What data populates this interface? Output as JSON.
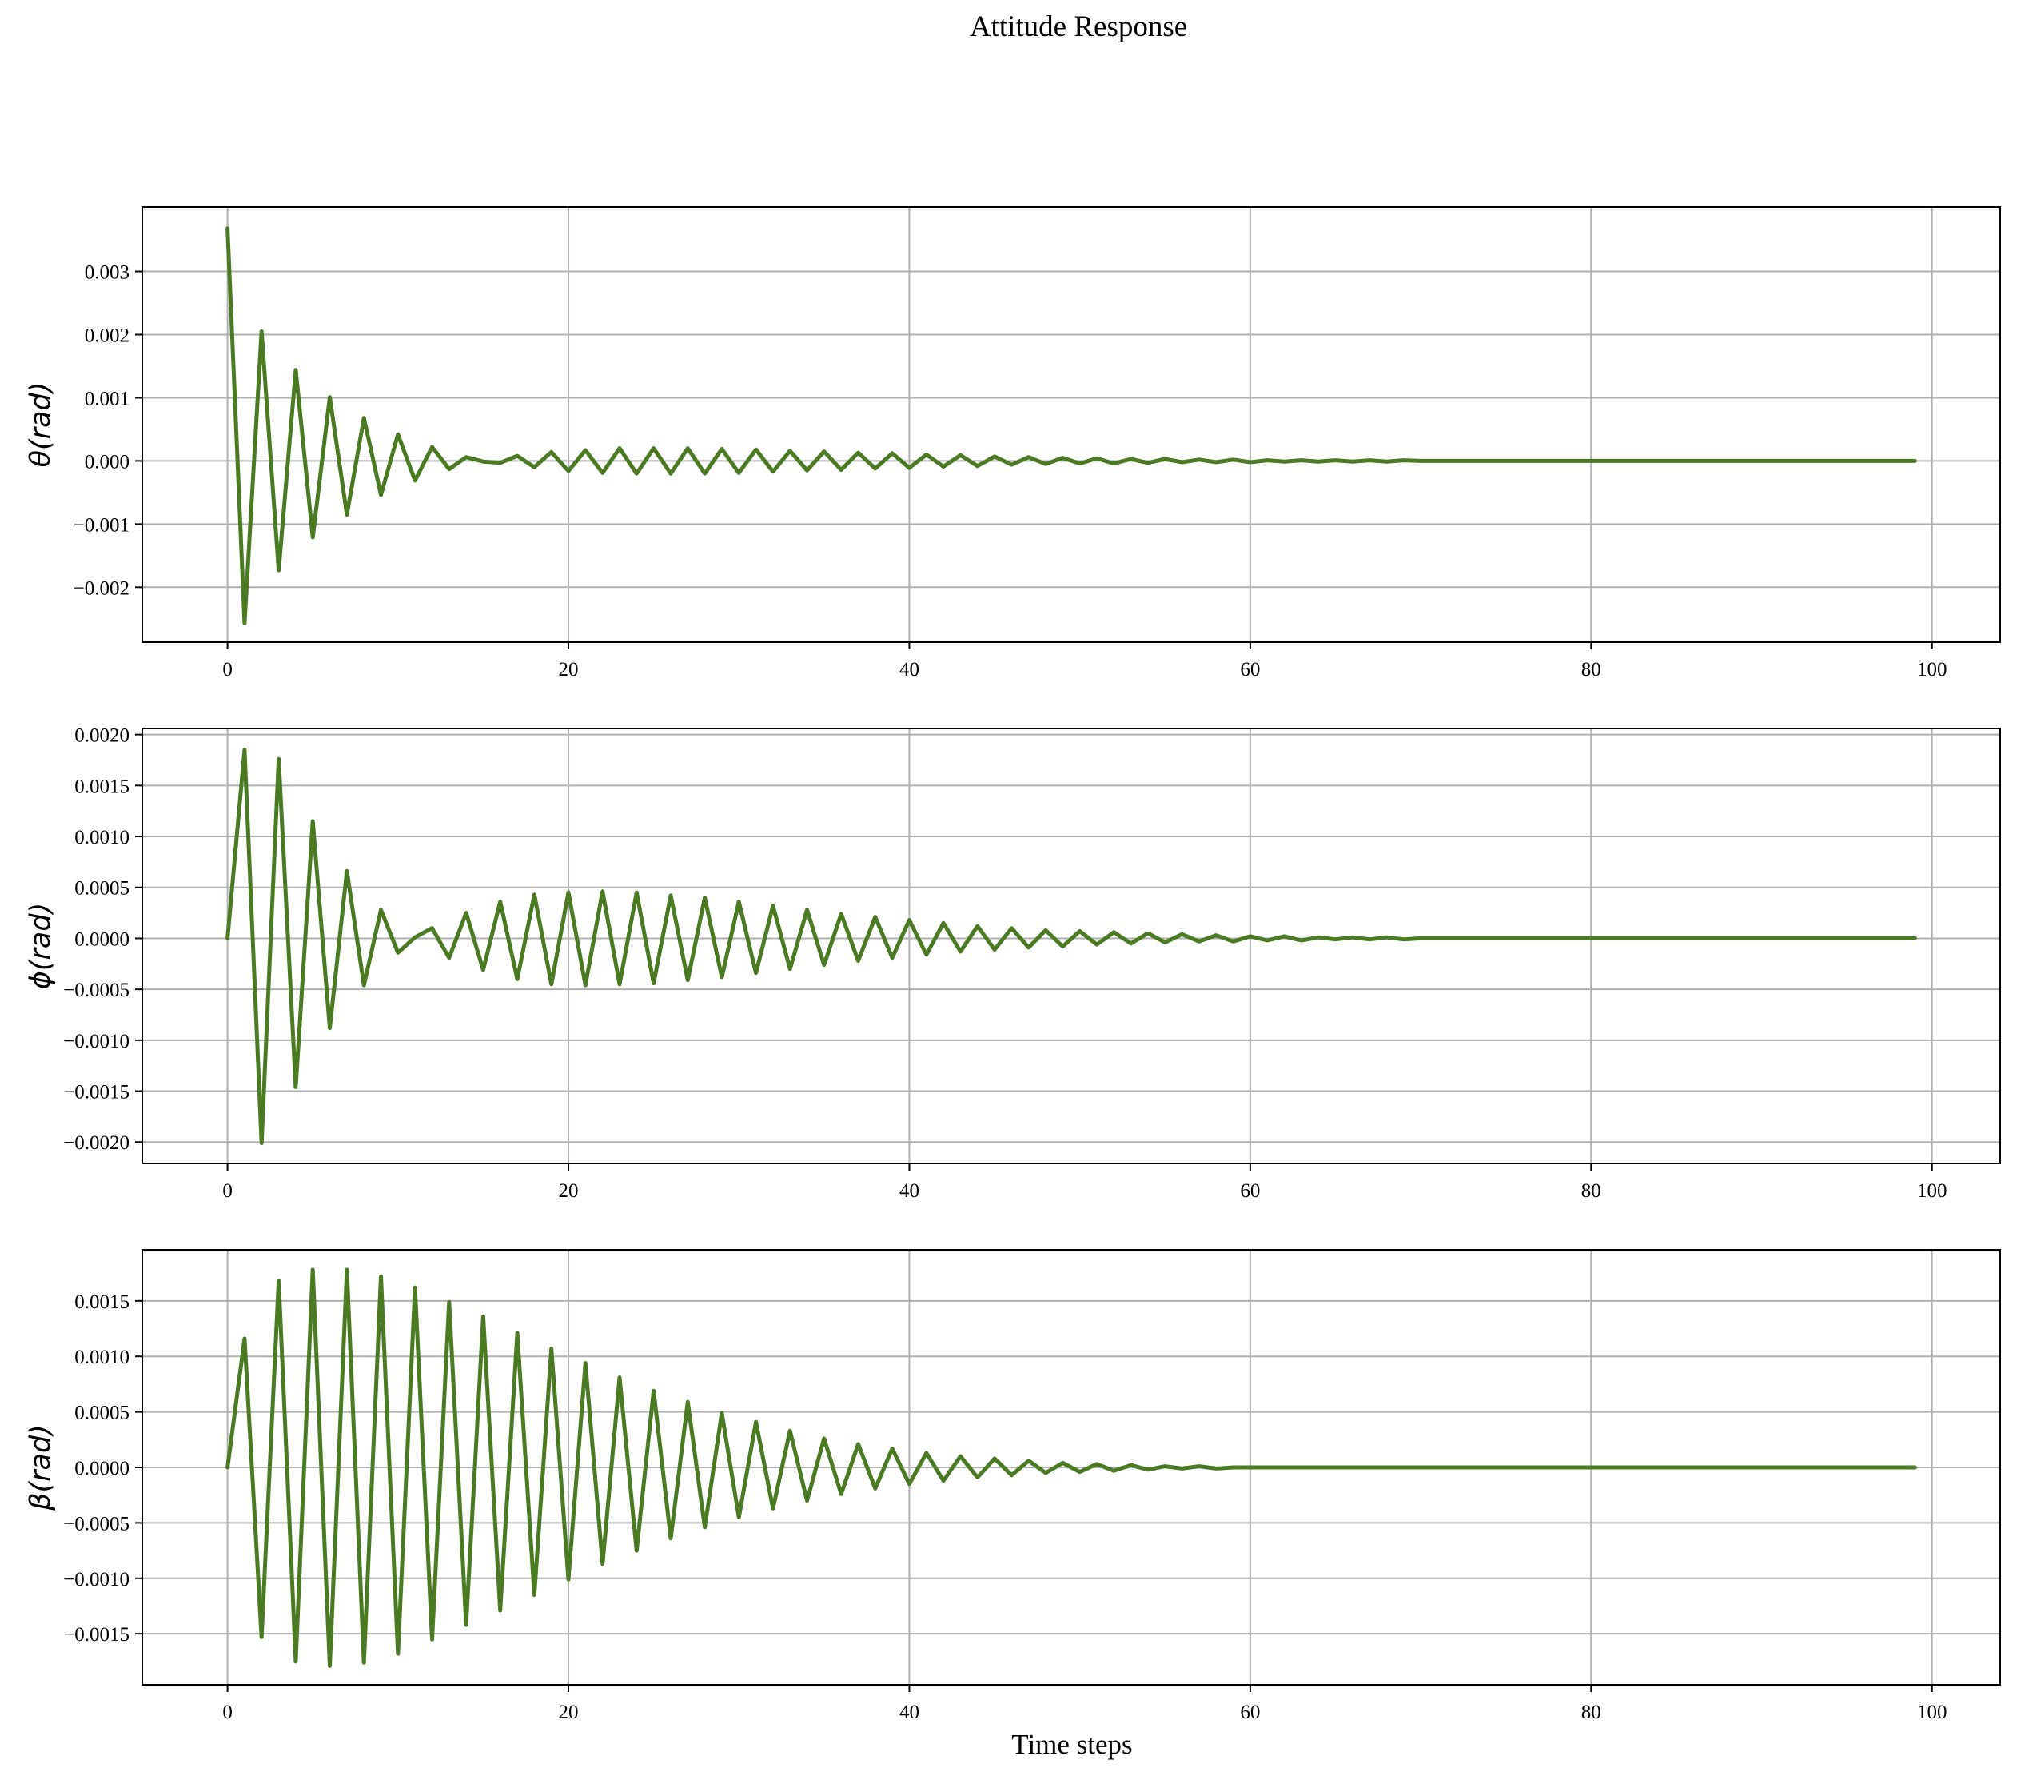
{
  "figure": {
    "title": "Attitude Response",
    "line_color": "#4a7a22",
    "grid": true
  },
  "chart_data": [
    {
      "type": "line",
      "title": "",
      "xlabel": "",
      "ylabel": "θ(rad)",
      "xlim": [
        -5,
        104
      ],
      "ylim": [
        -0.00287,
        0.00402
      ],
      "xticks": [
        0,
        20,
        40,
        60,
        80,
        100
      ],
      "xtick_labels": [
        "0",
        "20",
        "40",
        "60",
        "80",
        "100"
      ],
      "yticks": [
        -0.002,
        -0.001,
        0,
        0.001,
        0.002,
        0.003
      ],
      "ytick_labels": [
        "−0.002",
        "−0.001",
        "0.000",
        "0.001",
        "0.002",
        "0.003"
      ],
      "series": [
        {
          "name": "",
          "x": [
            0,
            1,
            2,
            3,
            4,
            5,
            6,
            7,
            8,
            9,
            10,
            11,
            12,
            13,
            14,
            15,
            16,
            17,
            18,
            19,
            20,
            21,
            22,
            23,
            24,
            25,
            26,
            27,
            28,
            29,
            30,
            31,
            32,
            33,
            34,
            35,
            36,
            37,
            38,
            39,
            40,
            41,
            42,
            43,
            44,
            45,
            46,
            47,
            48,
            49,
            50,
            51,
            52,
            53,
            54,
            55,
            56,
            57,
            58,
            59,
            60,
            61,
            62,
            63,
            64,
            65,
            66,
            67,
            68,
            69,
            70,
            71,
            72,
            73,
            74,
            75,
            76,
            77,
            78,
            79,
            80,
            81,
            82,
            83,
            84,
            85,
            86,
            87,
            88,
            89,
            90,
            91,
            92,
            93,
            94,
            95,
            96,
            97,
            98,
            99
          ],
          "y": [
            0.00368,
            -0.00257,
            0.00205,
            -0.00173,
            0.00144,
            -0.00121,
            0.00101,
            -0.00085,
            0.00068,
            -0.00054,
            0.00042,
            -0.00031,
            0.00022,
            -0.00013,
            6e-05,
            -1e-05,
            -3e-05,
            8e-05,
            -0.0001,
            0.00014,
            -0.00016,
            0.00017,
            -0.00019,
            0.0002,
            -0.0002,
            0.0002,
            -0.0002,
            0.0002,
            -0.0002,
            0.00019,
            -0.00019,
            0.00018,
            -0.00017,
            0.00016,
            -0.00015,
            0.00015,
            -0.00014,
            0.00013,
            -0.00012,
            0.00012,
            -0.00011,
            0.0001,
            -9e-05,
            9e-05,
            -8e-05,
            7e-05,
            -6e-05,
            6e-05,
            -5e-05,
            5e-05,
            -4e-05,
            4e-05,
            -4e-05,
            3e-05,
            -3e-05,
            3e-05,
            -2e-05,
            2e-05,
            -2e-05,
            2e-05,
            -2e-05,
            1e-05,
            -1e-05,
            1e-05,
            -1e-05,
            1e-05,
            -1e-05,
            1e-05,
            -1e-05,
            1e-05,
            0,
            0,
            0,
            0,
            0,
            0,
            0,
            0,
            0,
            0,
            0,
            0,
            0,
            0,
            0,
            0,
            0,
            0,
            0,
            0,
            0,
            0,
            0,
            0,
            0,
            0,
            0,
            0,
            0,
            0
          ]
        }
      ]
    },
    {
      "type": "line",
      "title": "",
      "xlabel": "",
      "ylabel": "ϕ(rad)",
      "xlim": [
        -5,
        104
      ],
      "ylim": [
        -0.00221,
        0.00206
      ],
      "xticks": [
        0,
        20,
        40,
        60,
        80,
        100
      ],
      "xtick_labels": [
        "0",
        "20",
        "40",
        "60",
        "80",
        "100"
      ],
      "yticks": [
        -0.002,
        -0.0015,
        -0.001,
        -0.0005,
        0,
        0.0005,
        0.001,
        0.0015,
        0.002
      ],
      "ytick_labels": [
        "−0.0020",
        "−0.0015",
        "−0.0010",
        "−0.0005",
        "0.0000",
        "0.0005",
        "0.0010",
        "0.0015",
        "0.0020"
      ],
      "series": [
        {
          "name": "",
          "x": [
            0,
            1,
            2,
            3,
            4,
            5,
            6,
            7,
            8,
            9,
            10,
            11,
            12,
            13,
            14,
            15,
            16,
            17,
            18,
            19,
            20,
            21,
            22,
            23,
            24,
            25,
            26,
            27,
            28,
            29,
            30,
            31,
            32,
            33,
            34,
            35,
            36,
            37,
            38,
            39,
            40,
            41,
            42,
            43,
            44,
            45,
            46,
            47,
            48,
            49,
            50,
            51,
            52,
            53,
            54,
            55,
            56,
            57,
            58,
            59,
            60,
            61,
            62,
            63,
            64,
            65,
            66,
            67,
            68,
            69,
            70,
            71,
            72,
            73,
            74,
            75,
            76,
            77,
            78,
            79,
            80,
            81,
            82,
            83,
            84,
            85,
            86,
            87,
            88,
            89,
            90,
            91,
            92,
            93,
            94,
            95,
            96,
            97,
            98,
            99
          ],
          "y": [
            0,
            0.00185,
            -0.00201,
            0.00176,
            -0.00146,
            0.00115,
            -0.00088,
            0.00066,
            -0.00046,
            0.00028,
            -0.00014,
            1e-05,
            0.0001,
            -0.00019,
            0.00025,
            -0.00031,
            0.00036,
            -0.0004,
            0.00043,
            -0.00045,
            0.00045,
            -0.00046,
            0.00046,
            -0.00045,
            0.00045,
            -0.00044,
            0.00042,
            -0.00041,
            0.0004,
            -0.00038,
            0.00036,
            -0.00034,
            0.00032,
            -0.0003,
            0.00028,
            -0.00026,
            0.00024,
            -0.00022,
            0.00021,
            -0.00019,
            0.00018,
            -0.00016,
            0.00015,
            -0.00013,
            0.00012,
            -0.00011,
            0.0001,
            -9e-05,
            8e-05,
            -8e-05,
            7e-05,
            -6e-05,
            6e-05,
            -5e-05,
            5e-05,
            -4e-05,
            4e-05,
            -3e-05,
            3e-05,
            -3e-05,
            2e-05,
            -2e-05,
            2e-05,
            -2e-05,
            1e-05,
            -1e-05,
            1e-05,
            -1e-05,
            1e-05,
            -1e-05,
            0,
            0,
            0,
            0,
            0,
            0,
            0,
            0,
            0,
            0,
            0,
            0,
            0,
            0,
            0,
            0,
            0,
            0,
            0,
            0,
            0,
            0,
            0,
            0,
            0,
            0,
            0,
            0,
            0,
            0
          ]
        }
      ]
    },
    {
      "type": "line",
      "title": "",
      "xlabel": "Time steps",
      "ylabel": "β(rad)",
      "xlim": [
        -5,
        104
      ],
      "ylim": [
        -0.00196,
        0.00196
      ],
      "xticks": [
        0,
        20,
        40,
        60,
        80,
        100
      ],
      "xtick_labels": [
        "0",
        "20",
        "40",
        "60",
        "80",
        "100"
      ],
      "yticks": [
        -0.0015,
        -0.001,
        -0.0005,
        0,
        0.0005,
        0.001,
        0.0015
      ],
      "ytick_labels": [
        "−0.0015",
        "−0.0010",
        "−0.0005",
        "0.0000",
        "0.0005",
        "0.0010",
        "0.0015"
      ],
      "series": [
        {
          "name": "",
          "x": [
            0,
            1,
            2,
            3,
            4,
            5,
            6,
            7,
            8,
            9,
            10,
            11,
            12,
            13,
            14,
            15,
            16,
            17,
            18,
            19,
            20,
            21,
            22,
            23,
            24,
            25,
            26,
            27,
            28,
            29,
            30,
            31,
            32,
            33,
            34,
            35,
            36,
            37,
            38,
            39,
            40,
            41,
            42,
            43,
            44,
            45,
            46,
            47,
            48,
            49,
            50,
            51,
            52,
            53,
            54,
            55,
            56,
            57,
            58,
            59,
            60,
            61,
            62,
            63,
            64,
            65,
            66,
            67,
            68,
            69,
            70,
            71,
            72,
            73,
            74,
            75,
            76,
            77,
            78,
            79,
            80,
            81,
            82,
            83,
            84,
            85,
            86,
            87,
            88,
            89,
            90,
            91,
            92,
            93,
            94,
            95,
            96,
            97,
            98,
            99
          ],
          "y": [
            0,
            0.00116,
            -0.00153,
            0.00168,
            -0.00175,
            0.00178,
            -0.00179,
            0.00178,
            -0.00176,
            0.00172,
            -0.00168,
            0.00162,
            -0.00155,
            0.00149,
            -0.00142,
            0.00136,
            -0.00129,
            0.00121,
            -0.00115,
            0.00107,
            -0.00101,
            0.00094,
            -0.00087,
            0.00081,
            -0.00075,
            0.00069,
            -0.00064,
            0.00059,
            -0.00054,
            0.00049,
            -0.00045,
            0.00041,
            -0.00037,
            0.00033,
            -0.0003,
            0.00026,
            -0.00024,
            0.00021,
            -0.00019,
            0.00017,
            -0.00015,
            0.00013,
            -0.00012,
            0.0001,
            -9e-05,
            8e-05,
            -7e-05,
            6e-05,
            -5e-05,
            4e-05,
            -4e-05,
            3e-05,
            -3e-05,
            2e-05,
            -2e-05,
            1e-05,
            -1e-05,
            1e-05,
            -1e-05,
            0,
            0,
            0,
            0,
            0,
            0,
            0,
            0,
            0,
            0,
            0,
            0,
            0,
            0,
            0,
            0,
            0,
            0,
            0,
            0,
            0,
            0,
            0,
            0,
            0,
            0,
            0,
            0,
            0,
            0,
            0,
            0,
            0,
            0,
            0,
            0,
            0,
            0,
            0,
            0,
            0
          ]
        }
      ]
    }
  ]
}
